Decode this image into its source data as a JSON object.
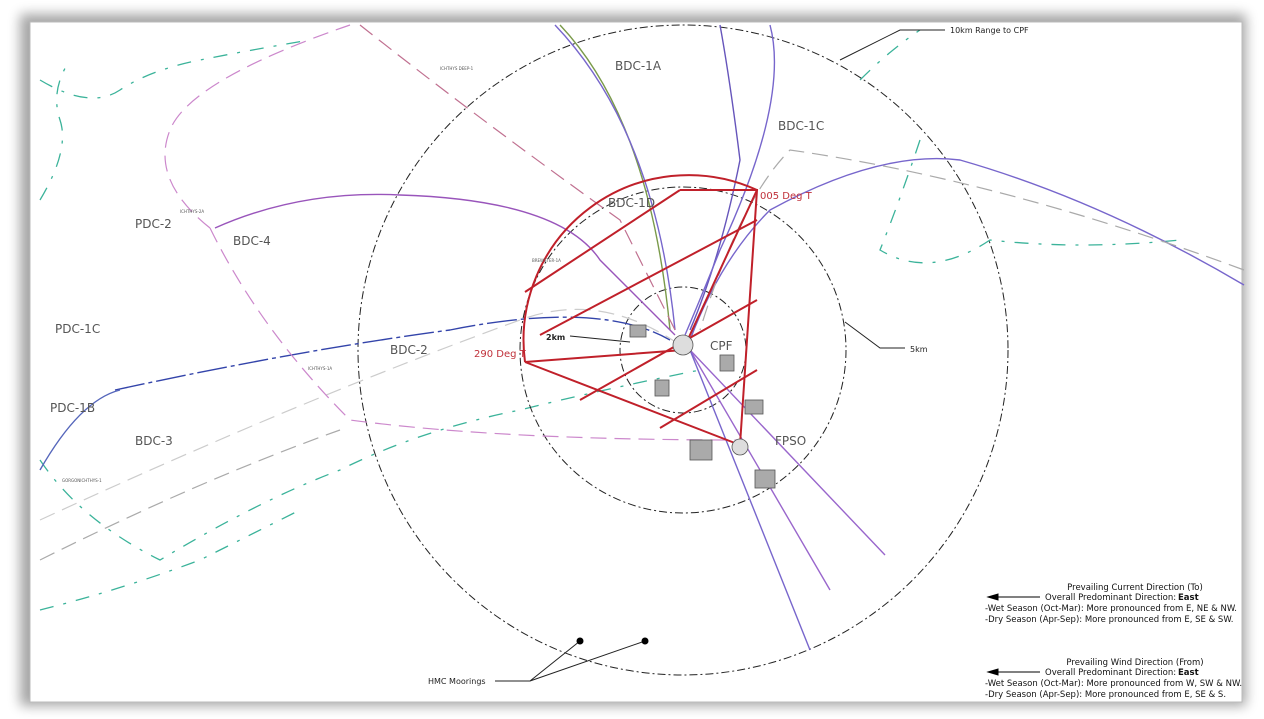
{
  "labels": {
    "range_10km": "10km Range to CPF",
    "bdc_1a": "BDC-1A",
    "bdc_1c": "BDC-1C",
    "bdc_1d": "BDC-1D",
    "deg_005": "005 Deg T",
    "pdc_2": "PDC-2",
    "bdc_4": "BDC-4",
    "pdc_1c": "PDC-1C",
    "r_2km": "2km",
    "cpf": "CPF",
    "r_5km": "5km",
    "deg_290": "290 Deg T",
    "bdc_2": "BDC-2",
    "pdc_1b": "PDC-1B",
    "bdc_3": "BDC-3",
    "fpso": "FPSO",
    "hmc_moorings": "HMC Moorings"
  },
  "wells": {
    "ichthys_deep_1": "ICHTHYS DEEP-1",
    "ichthys_2a": "ICHTHYS-2A",
    "brewster_1a": "BREWSTER-1A",
    "ichthys_1a": "ICHTHYS-1A",
    "gorgonichthys_1": "GORGONICHTHYS-1"
  },
  "legend": {
    "current": {
      "title": "Prevailing Current Direction (To)",
      "overall": "Overall Predominant Direction:",
      "direction": "East",
      "wet": "-Wet Season (Oct-Mar): More pronounced from E, NE & NW.",
      "dry": "-Dry Season (Apr-Sep): More pronounced from E, SE & SW."
    },
    "wind": {
      "title": "Prevailing Wind Direction (From)",
      "overall": "Overall Predominant Direction:",
      "direction": "East",
      "wet": "-Wet Season (Oct-Mar): More pronounced from W, SW & NW.",
      "dry": "-Dry Season (Apr-Sep): More pronounced from E, SE & S."
    }
  }
}
